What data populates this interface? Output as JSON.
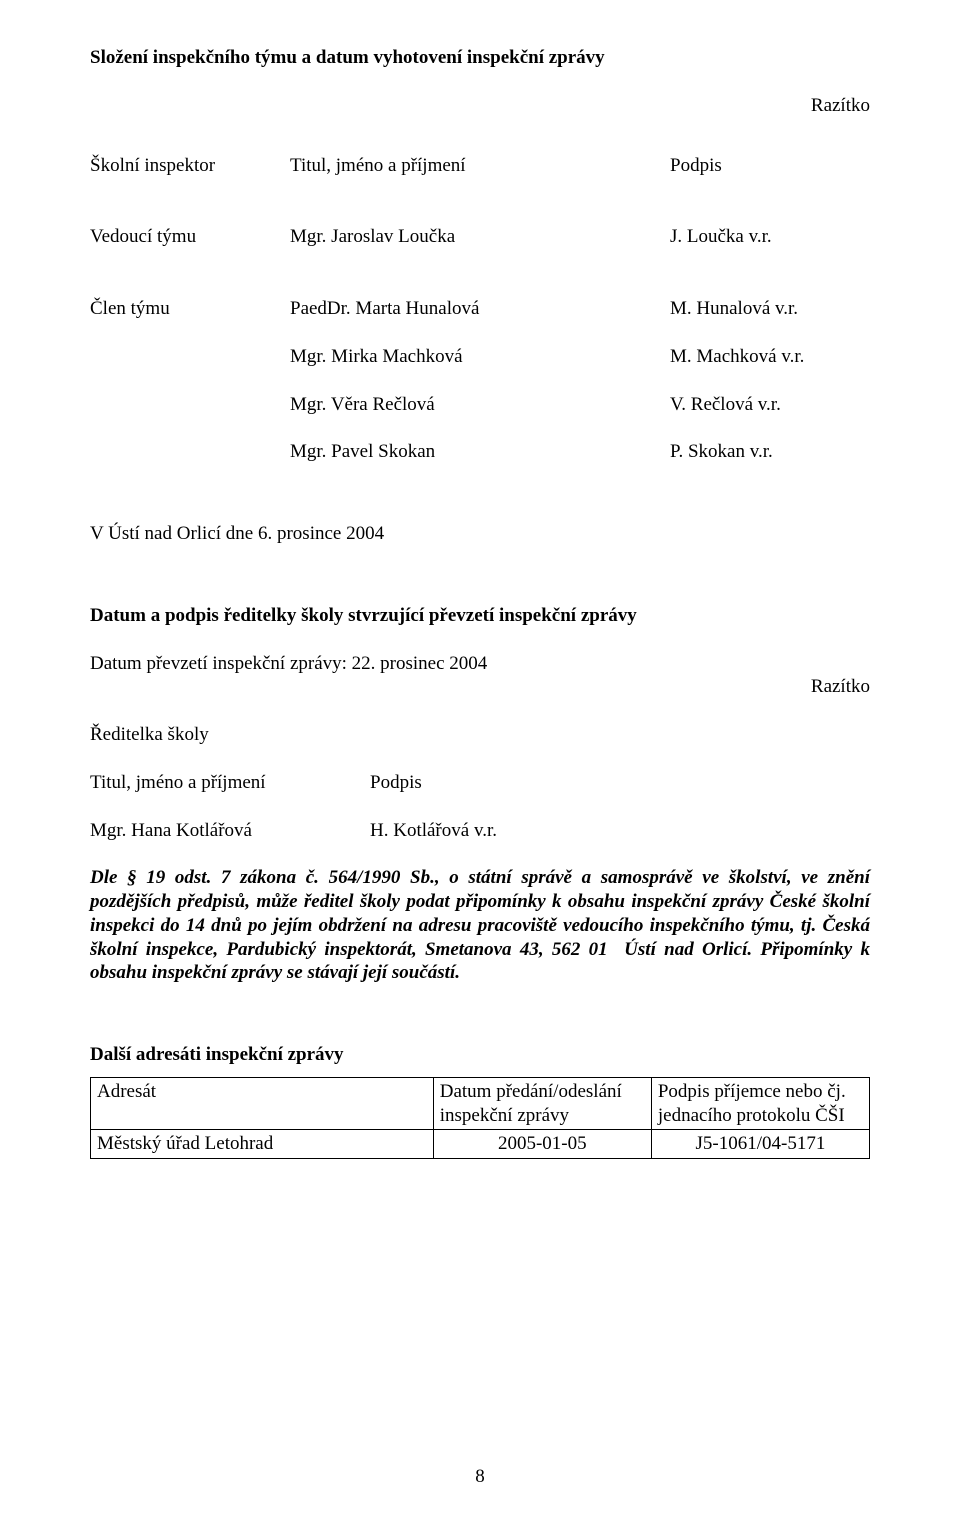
{
  "heading1": "Složení inspekčního týmu a datum vyhotovení inspekční zprávy",
  "stamp1": "Razítko",
  "columns": {
    "role": "Školní inspektor",
    "name_col": "Titul, jméno a příjmení",
    "sign_col": "Podpis"
  },
  "leaderRole": "Vedoucí týmu",
  "leaderName": "Mgr. Jaroslav Loučka",
  "leaderSig": "J. Loučka v.r.",
  "memberRole": "Člen týmu",
  "members": [
    {
      "name": "PaedDr. Marta Hunalová",
      "sig": "M. Hunalová v.r."
    },
    {
      "name": "Mgr. Mirka Machková",
      "sig": "M. Machková v.r."
    },
    {
      "name": "Mgr. Věra Rečlová",
      "sig": "V. Rečlová v.r."
    },
    {
      "name": "Mgr. Pavel Skokan",
      "sig": "P. Skokan v.r."
    }
  ],
  "placeDate": "V Ústí nad Orlicí dne 6. prosince 2004",
  "heading2": "Datum a podpis ředitelky školy stvrzující převzetí inspekční zprávy",
  "receiptDate": "Datum převzetí inspekční zprávy: 22. prosinec 2004",
  "stamp2": "Razítko",
  "directorLabel": "Ředitelka školy",
  "director": {
    "titleLabel": "Titul, jméno a příjmení",
    "sigLabel": "Podpis",
    "name": "Mgr. Hana Kotlářová",
    "sig": "H. Kotlářová v.r."
  },
  "legalText": "Dle § 19 odst. 7 zákona č. 564/1990 Sb., o státní správě a samosprávě ve školství, ve znění pozdějších předpisů, může ředitel školy podat připomínky k obsahu inspekční zprávy České školní inspekci do 14 dnů po jejím obdržení na adresu pracoviště vedoucího inspekčního týmu, tj. Česká školní inspekce, Pardubický inspektorát, Smetanova 43, 562 01  Ústí nad Orlicí. Připomínky k obsahu inspekční zprávy se stávají její součástí.",
  "heading3": "Další adresáti inspekční zprávy",
  "table": {
    "h1": "Adresát",
    "h2": "Datum předání/odeslání inspekční zprávy",
    "h3": "Podpis příjemce nebo čj. jednacího protokolu ČŠI",
    "r1c1": "Městský úřad Letohrad",
    "r1c2": "2005-01-05",
    "r1c3": "J5-1061/04-5171"
  },
  "pageNumber": "8"
}
